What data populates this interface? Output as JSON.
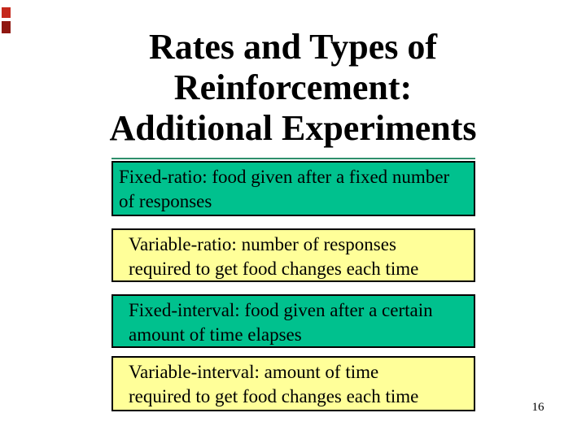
{
  "slide": {
    "title": "Rates and Types of\nReinforcement:\nAdditional Experiments",
    "page_number": "16",
    "colors": {
      "background": "#ffffff",
      "text": "#000000",
      "green_box": "#00c18e",
      "yellow_box": "#ffff99",
      "underline": "#2e8f6b",
      "accent_red_top": "#c5281c",
      "accent_red_bottom": "#8f1710"
    },
    "boxes": [
      {
        "id": "fixed-ratio",
        "style": "green",
        "text": "Fixed-ratio: food given after a fixed number\nof responses"
      },
      {
        "id": "variable-ratio",
        "style": "yellow",
        "text": "Variable-ratio: number of responses\nrequired to get food changes each time"
      },
      {
        "id": "fixed-interval",
        "style": "green",
        "text": "Fixed-interval: food given after a certain\namount of time elapses"
      },
      {
        "id": "variable-interval",
        "style": "yellow",
        "text": "Variable-interval: amount of time\nrequired to get food changes each time"
      }
    ]
  }
}
